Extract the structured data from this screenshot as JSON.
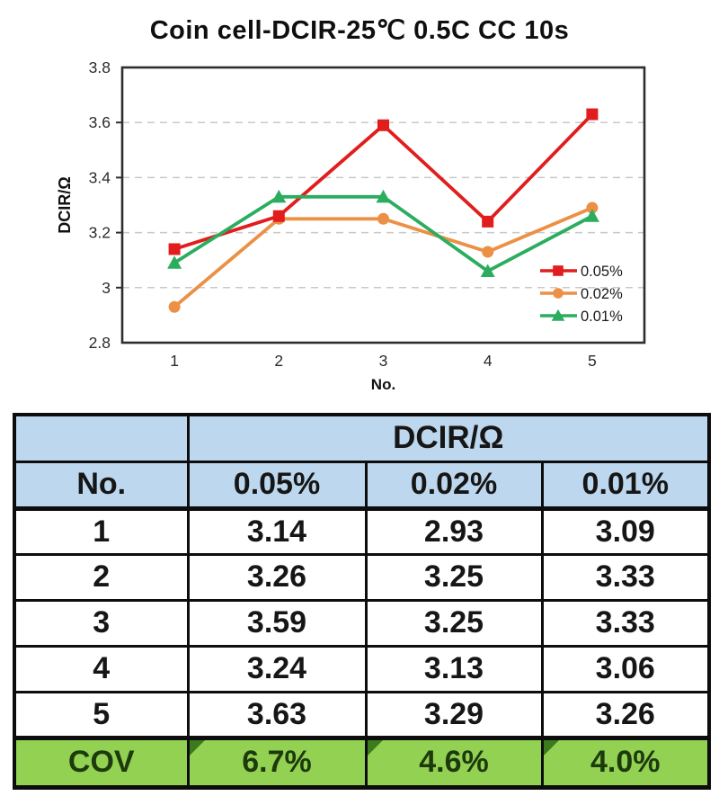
{
  "title": "Coin cell-DCIR-25℃ 0.5C CC 10s",
  "chart_data": {
    "type": "line",
    "title": "Coin cell-DCIR-25℃ 0.5C CC 10s",
    "x": [
      1,
      2,
      3,
      4,
      5
    ],
    "xtick_labels": [
      "1",
      "2",
      "3",
      "4",
      "5"
    ],
    "xlabel": "No.",
    "ylabel": "DCIR/Ω",
    "ylim": [
      2.8,
      3.8
    ],
    "yticks": [
      2.8,
      3.0,
      3.2,
      3.4,
      3.6,
      3.8
    ],
    "ytick_labels": [
      "2.8",
      "3",
      "3.2",
      "3.4",
      "3.6",
      "3.8"
    ],
    "grid": "horizontal-dashed",
    "legend_position": "inside-lower-right",
    "series": [
      {
        "name": "0.05%",
        "marker": "square",
        "color": "#e11d1d",
        "values": [
          3.14,
          3.26,
          3.59,
          3.24,
          3.63
        ]
      },
      {
        "name": "0.02%",
        "marker": "circle",
        "color": "#ec9045",
        "values": [
          2.93,
          3.25,
          3.25,
          3.13,
          3.29
        ]
      },
      {
        "name": "0.01%",
        "marker": "triangle",
        "color": "#2bad5f",
        "values": [
          3.09,
          3.33,
          3.33,
          3.06,
          3.26
        ]
      }
    ],
    "colors": {
      "axis": "#2e2e2e",
      "grid": "#c9c9c9",
      "tick_text": "#2b2b2b"
    }
  },
  "table": {
    "group_header": "DCIR/Ω",
    "col_headers": [
      "No.",
      "0.05%",
      "0.02%",
      "0.01%"
    ],
    "rows": [
      [
        "1",
        "3.14",
        "2.93",
        "3.09"
      ],
      [
        "2",
        "3.26",
        "3.25",
        "3.33"
      ],
      [
        "3",
        "3.59",
        "3.25",
        "3.33"
      ],
      [
        "4",
        "3.24",
        "3.13",
        "3.06"
      ],
      [
        "5",
        "3.63",
        "3.29",
        "3.26"
      ]
    ],
    "footer": {
      "label": "COV",
      "values": [
        "6.7%",
        "4.6%",
        "4.0%"
      ]
    },
    "colors": {
      "header_bg": "#bcd7ee",
      "footer_bg": "#93d152",
      "footer_text": "#1d3a0d",
      "corner_triangle": "#3c7a1d"
    }
  }
}
